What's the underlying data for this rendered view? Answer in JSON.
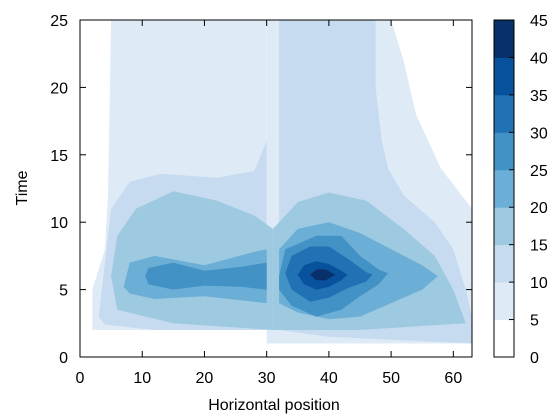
{
  "chart_data": {
    "type": "heatmap",
    "subtype": "filled-contour",
    "title": "",
    "xlabel": "Horizontal position",
    "ylabel": "Time",
    "xlim": [
      0,
      63
    ],
    "ylim": [
      0,
      25
    ],
    "xticks": [
      0,
      10,
      20,
      30,
      40,
      50,
      60
    ],
    "yticks": [
      0,
      5,
      10,
      15,
      20,
      25
    ],
    "grid": false,
    "colorbar": {
      "levels": [
        0,
        5,
        10,
        15,
        20,
        25,
        30,
        35,
        40,
        45
      ],
      "colors": [
        "#ffffff",
        "#deebf7",
        "#c6dbef",
        "#9ecae1",
        "#6baed6",
        "#4292c6",
        "#2171b5",
        "#08519c",
        "#08306b"
      ]
    },
    "regions": [
      {
        "level": 5,
        "label": "left wide band",
        "outline": [
          [
            2,
            2
          ],
          [
            2,
            5
          ],
          [
            4,
            8
          ],
          [
            4.5,
            12
          ],
          [
            5,
            25
          ],
          [
            30,
            25
          ],
          [
            30,
            2
          ]
        ]
      },
      {
        "level": 5,
        "label": "right wide band",
        "outline": [
          [
            30,
            2
          ],
          [
            30,
            25
          ],
          [
            50,
            25
          ],
          [
            52,
            22
          ],
          [
            54,
            18
          ],
          [
            58,
            14
          ],
          [
            63,
            11
          ],
          [
            63,
            1
          ],
          [
            30,
            1
          ]
        ]
      },
      {
        "level": 10,
        "label": "left plume",
        "outline": [
          [
            3,
            3
          ],
          [
            4,
            7
          ],
          [
            5,
            11
          ],
          [
            8,
            13
          ],
          [
            13,
            13.6
          ],
          [
            22,
            13.3
          ],
          [
            28,
            13.8
          ],
          [
            30,
            16
          ],
          [
            30,
            2
          ],
          [
            12,
            2
          ],
          [
            4,
            2.4
          ]
        ]
      },
      {
        "level": 10,
        "label": "right plume",
        "outline": [
          [
            32,
            25
          ],
          [
            47.5,
            25
          ],
          [
            47.5,
            20
          ],
          [
            48.5,
            16
          ],
          [
            49.5,
            14
          ],
          [
            52,
            12
          ],
          [
            57,
            10
          ],
          [
            60,
            8
          ],
          [
            62,
            5
          ],
          [
            63,
            3
          ],
          [
            63,
            1
          ],
          [
            40,
            1.5
          ],
          [
            32,
            2
          ]
        ]
      },
      {
        "level": 15,
        "label": "left mass",
        "outline": [
          [
            5,
            6
          ],
          [
            6,
            9
          ],
          [
            9,
            11
          ],
          [
            15,
            12.3
          ],
          [
            22,
            11.6
          ],
          [
            28,
            10.5
          ],
          [
            31,
            9.5
          ],
          [
            31,
            2
          ],
          [
            15,
            2.5
          ],
          [
            6,
            3.5
          ]
        ]
      },
      {
        "level": 15,
        "label": "right mass",
        "outline": [
          [
            31,
            2
          ],
          [
            31,
            9.5
          ],
          [
            35,
            11.5
          ],
          [
            40,
            12.2
          ],
          [
            46,
            11.6
          ],
          [
            52,
            9.5
          ],
          [
            57,
            7.5
          ],
          [
            60,
            5
          ],
          [
            62,
            2.5
          ],
          [
            45,
            2
          ],
          [
            35,
            2
          ]
        ]
      },
      {
        "level": 20,
        "label": "left core",
        "outline": [
          [
            7,
            5.2
          ],
          [
            8,
            7
          ],
          [
            12,
            7.5
          ],
          [
            20,
            6.8
          ],
          [
            28,
            7.8
          ],
          [
            30,
            8
          ],
          [
            30,
            4
          ],
          [
            20,
            4.5
          ],
          [
            12,
            4.3
          ],
          [
            8,
            4.7
          ]
        ]
      },
      {
        "level": 20,
        "label": "right core",
        "outline": [
          [
            32,
            8
          ],
          [
            35,
            9.5
          ],
          [
            40,
            10
          ],
          [
            45,
            9.2
          ],
          [
            50,
            8
          ],
          [
            55,
            6.8
          ],
          [
            57.5,
            6
          ],
          [
            55,
            5
          ],
          [
            50,
            4
          ],
          [
            45,
            3
          ],
          [
            40,
            2.8
          ],
          [
            35,
            3.3
          ],
          [
            32,
            4
          ]
        ]
      },
      {
        "level": 25,
        "label": "left inner",
        "outline": [
          [
            10.5,
            6
          ],
          [
            11,
            6.6
          ],
          [
            15,
            7
          ],
          [
            20,
            6.4
          ],
          [
            26,
            6.7
          ],
          [
            30,
            7
          ],
          [
            30,
            5
          ],
          [
            26,
            5.2
          ],
          [
            20,
            5.3
          ],
          [
            15,
            5
          ],
          [
            11,
            5.4
          ]
        ]
      },
      {
        "level": 25,
        "label": "right inner",
        "outline": [
          [
            32,
            6
          ],
          [
            33,
            8
          ],
          [
            38,
            9
          ],
          [
            42,
            9
          ],
          [
            45,
            7.5
          ],
          [
            48,
            6.5
          ],
          [
            49.5,
            6.2
          ],
          [
            48,
            5.4
          ],
          [
            45,
            4.5
          ],
          [
            42,
            3.5
          ],
          [
            38,
            3
          ],
          [
            34,
            3.8
          ],
          [
            32,
            5
          ]
        ]
      },
      {
        "level": 30,
        "label": "peak ring",
        "outline": [
          [
            33,
            6.2
          ],
          [
            34,
            7.5
          ],
          [
            37,
            8.2
          ],
          [
            40,
            8.2
          ],
          [
            43,
            7.3
          ],
          [
            46,
            6.3
          ],
          [
            47,
            6.1
          ],
          [
            46,
            5.6
          ],
          [
            43,
            5.1
          ],
          [
            40,
            4.4
          ],
          [
            37,
            4.1
          ],
          [
            34,
            5
          ]
        ]
      },
      {
        "level": 35,
        "label": "peak",
        "outline": [
          [
            35,
            6.1
          ],
          [
            36,
            6.8
          ],
          [
            38,
            7.1
          ],
          [
            40,
            6.9
          ],
          [
            42,
            6.4
          ],
          [
            43,
            6.1
          ],
          [
            42,
            5.7
          ],
          [
            40,
            5.2
          ],
          [
            38,
            5
          ],
          [
            36,
            5.4
          ]
        ]
      },
      {
        "level": 40,
        "label": "peak center",
        "outline": [
          [
            37,
            6.1
          ],
          [
            38,
            6.5
          ],
          [
            39.5,
            6.5
          ],
          [
            41,
            6.1
          ],
          [
            39.5,
            5.7
          ],
          [
            38,
            5.7
          ]
        ]
      }
    ]
  }
}
